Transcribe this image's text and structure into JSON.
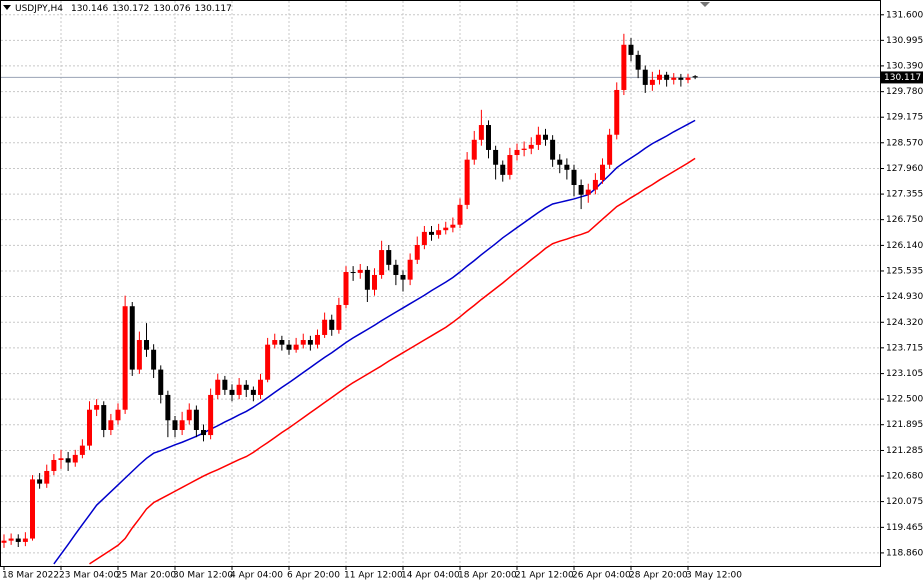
{
  "chart_data": {
    "type": "candlestick",
    "title": "USDJPY,H4",
    "up_color": "#ff0000",
    "down_color": "#000000",
    "grid": true,
    "ylim": [
      118.55,
      131.95
    ],
    "yticks": [
      {
        "value": 131.6,
        "label": "131.600"
      },
      130.995,
      {
        "value": 130.39,
        "label": "130.390"
      },
      {
        "value": 129.78,
        "label": "129.780"
      },
      129.175,
      {
        "value": 128.57,
        "label": "128.570"
      },
      {
        "value": 127.96,
        "label": "127.960"
      },
      127.355,
      {
        "value": 126.75,
        "label": "126.750"
      },
      {
        "value": 126.14,
        "label": "126.140"
      },
      125.535,
      {
        "value": 124.93,
        "label": "124.930"
      },
      {
        "value": 124.32,
        "label": "124.320"
      },
      123.715,
      123.105,
      {
        "value": 122.5,
        "label": "122.500"
      },
      121.895,
      121.285,
      {
        "value": 120.68,
        "label": "120.680"
      },
      120.075,
      119.465,
      {
        "value": 118.86,
        "label": "118.860"
      }
    ],
    "categories": [
      "18 Mar 2022",
      null,
      null,
      null,
      null,
      null,
      null,
      null,
      "23 Mar 04:00",
      null,
      null,
      null,
      null,
      null,
      null,
      null,
      "25 Mar 20:00",
      null,
      null,
      null,
      null,
      null,
      null,
      null,
      "30 Mar 12:00",
      null,
      null,
      null,
      null,
      null,
      null,
      null,
      "4 Apr 04:00",
      null,
      null,
      null,
      null,
      null,
      null,
      null,
      "6 Apr 20:00",
      null,
      null,
      null,
      null,
      null,
      null,
      null,
      "11 Apr 12:00",
      null,
      null,
      null,
      null,
      null,
      null,
      null,
      "14 Apr 04:00",
      null,
      null,
      null,
      null,
      null,
      null,
      null,
      "18 Apr 20:00",
      null,
      null,
      null,
      null,
      null,
      null,
      null,
      "21 Apr 12:00",
      null,
      null,
      null,
      null,
      null,
      null,
      null,
      "26 Apr 04:00",
      null,
      null,
      null,
      null,
      null,
      null,
      null,
      "28 Apr 20:00",
      null,
      null,
      null,
      null,
      null,
      null,
      null,
      "3 May 12:00",
      null
    ],
    "candles": {
      "open": [
        119.1,
        119.15,
        119.2,
        119.12,
        119.2,
        120.6,
        120.5,
        120.8,
        121.06,
        121.1,
        121.0,
        121.18,
        121.4,
        122.25,
        122.36,
        121.77,
        122.0,
        122.25,
        124.7,
        123.2,
        123.9,
        123.67,
        123.2,
        122.6,
        122.0,
        121.77,
        122.0,
        122.25,
        121.77,
        121.65,
        122.6,
        122.96,
        122.72,
        122.6,
        122.84,
        122.72,
        122.6,
        122.96,
        123.79,
        123.9,
        123.79,
        123.67,
        123.79,
        123.9,
        123.79,
        124.02,
        124.38,
        124.14,
        124.73,
        125.51,
        125.49,
        125.56,
        125.09,
        125.44,
        126.03,
        125.68,
        125.44,
        125.33,
        125.8,
        126.15,
        126.46,
        126.39,
        126.5,
        126.56,
        126.63,
        127.1,
        128.17,
        128.64,
        128.99,
        128.4,
        128.05,
        127.81,
        128.28,
        128.4,
        128.43,
        128.52,
        128.76,
        128.64,
        128.17,
        128.05,
        127.93,
        127.57,
        127.34,
        127.46,
        127.69,
        128.05,
        128.76,
        129.82,
        130.89,
        130.65,
        130.3,
        129.94,
        130.06,
        130.18,
        130.06,
        130.11,
        130.06,
        130.146
      ],
      "high": [
        119.3,
        119.32,
        119.3,
        119.35,
        120.7,
        120.75,
        120.95,
        121.2,
        121.3,
        121.25,
        121.3,
        121.55,
        122.45,
        122.5,
        122.45,
        122.15,
        122.4,
        124.95,
        124.8,
        124.1,
        124.3,
        123.8,
        123.3,
        122.7,
        122.1,
        122.2,
        122.4,
        122.35,
        121.9,
        122.75,
        123.1,
        123.05,
        122.85,
        123.0,
        122.95,
        122.8,
        123.1,
        123.95,
        124.05,
        124.0,
        123.9,
        123.95,
        124.05,
        124.0,
        124.15,
        124.55,
        124.5,
        124.9,
        125.65,
        125.65,
        125.7,
        125.65,
        125.6,
        126.25,
        126.15,
        125.8,
        125.55,
        125.95,
        126.35,
        126.6,
        126.6,
        126.65,
        126.7,
        126.8,
        127.25,
        128.35,
        128.85,
        129.35,
        129.1,
        128.5,
        128.15,
        128.45,
        128.55,
        128.6,
        128.7,
        128.95,
        128.9,
        128.75,
        128.3,
        128.2,
        128.05,
        127.7,
        127.6,
        127.85,
        128.2,
        128.9,
        130.0,
        131.15,
        131.05,
        130.75,
        130.4,
        130.25,
        130.3,
        130.25,
        130.22,
        130.2,
        130.2,
        130.172
      ],
      "low": [
        118.98,
        119.05,
        119.0,
        119.02,
        119.15,
        120.38,
        120.4,
        120.7,
        120.85,
        120.8,
        120.9,
        121.1,
        121.3,
        122.1,
        121.6,
        121.65,
        121.9,
        122.15,
        123.05,
        123.1,
        123.5,
        123.0,
        122.4,
        121.6,
        121.6,
        121.65,
        121.9,
        121.6,
        121.5,
        121.55,
        122.5,
        122.6,
        122.45,
        122.5,
        122.55,
        122.45,
        122.5,
        122.9,
        123.7,
        123.65,
        123.55,
        123.6,
        123.7,
        123.65,
        123.7,
        123.95,
        124.0,
        124.05,
        124.65,
        125.3,
        125.35,
        124.8,
        124.95,
        125.35,
        125.55,
        125.2,
        125.05,
        125.2,
        125.7,
        126.05,
        126.25,
        126.3,
        126.4,
        126.45,
        126.55,
        127.0,
        128.05,
        128.5,
        128.2,
        127.7,
        127.65,
        127.7,
        128.15,
        128.25,
        128.3,
        128.4,
        128.5,
        128.0,
        127.85,
        127.7,
        127.3,
        127.0,
        127.15,
        127.35,
        127.6,
        127.95,
        128.65,
        129.7,
        130.5,
        130.1,
        129.75,
        129.8,
        129.95,
        129.9,
        129.95,
        129.9,
        129.98,
        130.076
      ],
      "close": [
        119.15,
        119.2,
        119.12,
        119.2,
        120.6,
        120.5,
        120.8,
        121.06,
        121.1,
        121.0,
        121.18,
        121.4,
        122.25,
        122.36,
        121.77,
        122.0,
        122.25,
        124.7,
        123.2,
        123.9,
        123.67,
        123.2,
        122.6,
        122.0,
        121.77,
        122.0,
        122.25,
        121.77,
        121.65,
        122.6,
        122.96,
        122.72,
        122.6,
        122.84,
        122.72,
        122.6,
        122.96,
        123.79,
        123.9,
        123.79,
        123.67,
        123.79,
        123.9,
        123.79,
        124.02,
        124.38,
        124.14,
        124.73,
        125.51,
        125.49,
        125.56,
        125.09,
        125.44,
        126.03,
        125.68,
        125.44,
        125.33,
        125.8,
        126.15,
        126.46,
        126.39,
        126.5,
        126.56,
        126.63,
        127.1,
        128.17,
        128.64,
        128.99,
        128.4,
        128.05,
        127.81,
        128.28,
        128.4,
        128.43,
        128.52,
        128.76,
        128.64,
        128.17,
        128.05,
        127.93,
        127.57,
        127.34,
        127.46,
        127.69,
        128.05,
        128.76,
        129.82,
        130.89,
        130.65,
        130.3,
        129.94,
        130.06,
        130.18,
        130.06,
        130.11,
        130.06,
        130.11,
        130.117
      ]
    },
    "lines": [
      {
        "color": "#0000cc",
        "values": [
          null,
          null,
          null,
          null,
          null,
          null,
          null,
          118.6,
          118.83,
          119.06,
          119.3,
          119.53,
          119.76,
          119.99,
          120.15,
          120.31,
          120.47,
          120.63,
          120.79,
          120.95,
          121.1,
          121.22,
          121.28,
          121.35,
          121.42,
          121.48,
          121.55,
          121.62,
          121.7,
          121.79,
          121.87,
          121.96,
          122.04,
          122.13,
          122.21,
          122.31,
          122.42,
          122.54,
          122.66,
          122.78,
          122.89,
          123.01,
          123.13,
          123.25,
          123.37,
          123.49,
          123.6,
          123.72,
          123.84,
          123.95,
          124.05,
          124.15,
          124.25,
          124.36,
          124.46,
          124.56,
          124.66,
          124.76,
          124.86,
          124.96,
          125.07,
          125.17,
          125.27,
          125.38,
          125.51,
          125.65,
          125.78,
          125.92,
          126.05,
          126.18,
          126.32,
          126.44,
          126.56,
          126.68,
          126.8,
          126.92,
          127.03,
          127.12,
          127.16,
          127.2,
          127.24,
          127.29,
          127.34,
          127.48,
          127.65,
          127.81,
          127.98,
          128.1,
          128.21,
          128.32,
          128.44,
          128.55,
          128.64,
          128.73,
          128.83,
          128.92,
          129.01,
          129.1
        ]
      },
      {
        "color": "#ff0000",
        "values": [
          null,
          null,
          null,
          null,
          null,
          null,
          null,
          null,
          null,
          null,
          null,
          null,
          118.6,
          118.71,
          118.82,
          118.93,
          119.04,
          119.2,
          119.45,
          119.67,
          119.9,
          120.05,
          120.14,
          120.23,
          120.32,
          120.41,
          120.5,
          120.59,
          120.68,
          120.76,
          120.83,
          120.91,
          120.99,
          121.07,
          121.14,
          121.24,
          121.36,
          121.47,
          121.59,
          121.71,
          121.82,
          121.94,
          122.06,
          122.18,
          122.3,
          122.42,
          122.54,
          122.66,
          122.78,
          122.89,
          122.99,
          123.09,
          123.19,
          123.29,
          123.4,
          123.5,
          123.6,
          123.7,
          123.8,
          123.9,
          124.0,
          124.1,
          124.2,
          124.32,
          124.45,
          124.59,
          124.72,
          124.86,
          124.99,
          125.12,
          125.25,
          125.39,
          125.53,
          125.66,
          125.8,
          125.93,
          126.07,
          126.18,
          126.24,
          126.29,
          126.35,
          126.4,
          126.46,
          126.61,
          126.76,
          126.91,
          127.06,
          127.16,
          127.27,
          127.37,
          127.48,
          127.58,
          127.69,
          127.79,
          127.89,
          127.99,
          128.09,
          128.2
        ]
      }
    ]
  }
}
